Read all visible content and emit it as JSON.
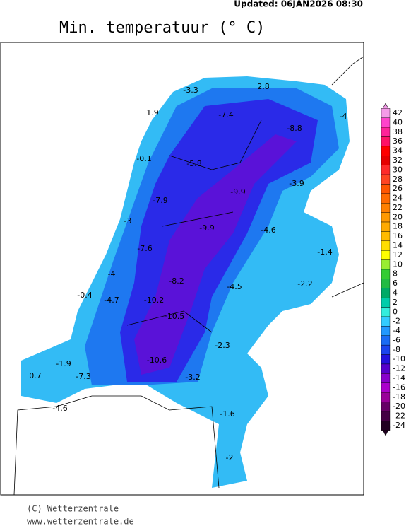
{
  "header": {
    "updated": "Updated: 06JAN2026 08:30",
    "title": "Min. temperatuur (° C)"
  },
  "stations": [
    -3.3,
    2.8,
    1.9,
    -7.4,
    -4.0,
    -8.8,
    -0.1,
    -5.8,
    -3.9,
    -9.9,
    -7.9,
    -3.0,
    -9.9,
    -4.6,
    -1.4,
    -7.6,
    -4.0,
    -8.2,
    -2.2,
    -4.5,
    -0.4,
    -4.7,
    -10.2,
    -10.5,
    -2.3,
    -1.9,
    -10.6,
    0.7,
    -7.3,
    -3.2,
    -4.6,
    -1.6,
    -2.0
  ],
  "scale": {
    "values": [
      42,
      40,
      38,
      36,
      34,
      32,
      30,
      28,
      26,
      24,
      22,
      20,
      18,
      16,
      14,
      12,
      10,
      8,
      6,
      4,
      2,
      0,
      -2,
      -4,
      -6,
      -8,
      -10,
      -12,
      -14,
      -16,
      -18,
      -20,
      -22,
      -24
    ],
    "colors": [
      "#f49be8",
      "#ff44cc",
      "#ff2299",
      "#ff1166",
      "#ff0000",
      "#e60000",
      "#ff2a2a",
      "#ff4422",
      "#ff5500",
      "#ff6a00",
      "#ff8000",
      "#ff9900",
      "#ffaa00",
      "#ffbb00",
      "#ffdd00",
      "#ffff00",
      "#99ee33",
      "#33cc33",
      "#22bb44",
      "#00aa66",
      "#00ccaa",
      "#33eedd",
      "#33ccff",
      "#2299ff",
      "#1a6cf5",
      "#1a44ee",
      "#2211dd",
      "#5500cc",
      "#8800cc",
      "#aa00cc",
      "#990099",
      "#660066",
      "#440044",
      "#220022"
    ]
  },
  "footer": {
    "copyright": "(C) Wetterzentrale",
    "url": "www.wetterzentrale.de"
  }
}
